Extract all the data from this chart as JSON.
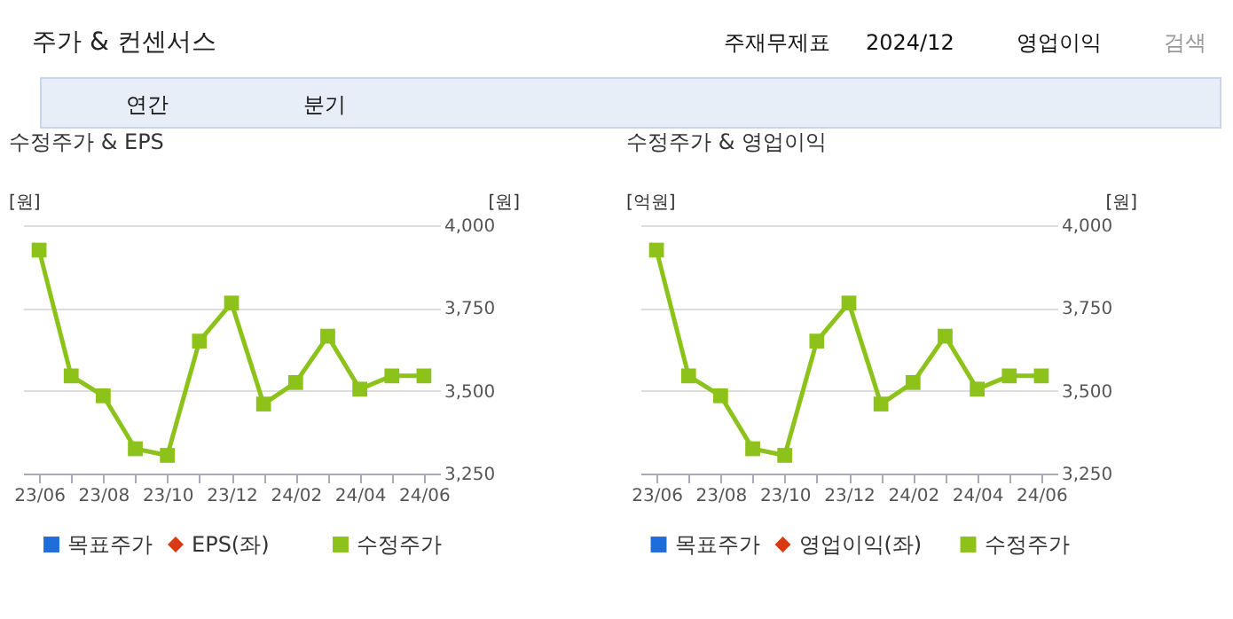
{
  "chart_data": [
    {
      "type": "line",
      "title": "수정주가 & EPS",
      "ylabel": "[원]",
      "y2label": "[원]",
      "annotations": [
        "주가 & 컨센서스",
        "주재무제표",
        "2024/12",
        "영업이익",
        "검색",
        "연간",
        "분기"
      ],
      "categories": [
        "23/06",
        null,
        "23/08",
        null,
        "23/10",
        null,
        "23/12",
        null,
        "24/02",
        null,
        "24/04",
        null,
        "24/06"
      ],
      "series": [
        {
          "name": "목표주가",
          "color": "#1f6ddb",
          "marker": "square",
          "axis": "y2",
          "values": [
            null,
            null,
            null,
            null,
            null,
            null,
            null,
            null,
            null,
            null,
            null,
            null,
            null
          ]
        },
        {
          "name": "EPS(좌)",
          "color": "#d93a12",
          "marker": "diamond",
          "values": [
            null,
            null,
            null,
            null,
            null,
            null,
            null,
            null,
            null,
            null,
            null,
            null,
            null
          ]
        },
        {
          "name": "수정주가",
          "color": "#8cc21a",
          "marker": "square",
          "axis": "y2",
          "values": [
            3925,
            3545,
            3485,
            3325,
            3305,
            3650,
            3765,
            3460,
            3525,
            3665,
            3505,
            3545,
            3545
          ]
        }
      ],
      "y2lim": [
        3250,
        4000
      ],
      "y2ticks": [
        {
          "value": 3250,
          "label": "3,250"
        },
        {
          "value": 3500,
          "label": "3,500"
        },
        {
          "value": 3750,
          "label": "3,750"
        },
        {
          "value": 4000,
          "label": "4,000"
        }
      ],
      "grid": "y",
      "legend": "bottom"
    },
    {
      "type": "line",
      "title": "수정주가 & 영업이익",
      "ylabel": "[억원]",
      "y2label": "[원]",
      "categories": [
        "23/06",
        null,
        "23/08",
        null,
        "23/10",
        null,
        "23/12",
        null,
        "24/02",
        null,
        "24/04",
        null,
        "24/06"
      ],
      "series": [
        {
          "name": "목표주가",
          "color": "#1f6ddb",
          "marker": "square",
          "axis": "y2",
          "values": [
            null,
            null,
            null,
            null,
            null,
            null,
            null,
            null,
            null,
            null,
            null,
            null,
            null
          ]
        },
        {
          "name": "영업이익(좌)",
          "color": "#d93a12",
          "marker": "diamond",
          "values": [
            null,
            null,
            null,
            null,
            null,
            null,
            null,
            null,
            null,
            null,
            null,
            null,
            null
          ]
        },
        {
          "name": "수정주가",
          "color": "#8cc21a",
          "marker": "square",
          "axis": "y2",
          "values": [
            3925,
            3545,
            3485,
            3325,
            3305,
            3650,
            3765,
            3460,
            3525,
            3665,
            3505,
            3545,
            3545
          ]
        }
      ],
      "y2lim": [
        3250,
        4000
      ],
      "y2ticks": [
        {
          "value": 3250,
          "label": "3,250"
        },
        {
          "value": 3500,
          "label": "3,500"
        },
        {
          "value": 3750,
          "label": "3,750"
        },
        {
          "value": 4000,
          "label": "4,000"
        }
      ],
      "grid": "y",
      "legend": "bottom"
    }
  ]
}
